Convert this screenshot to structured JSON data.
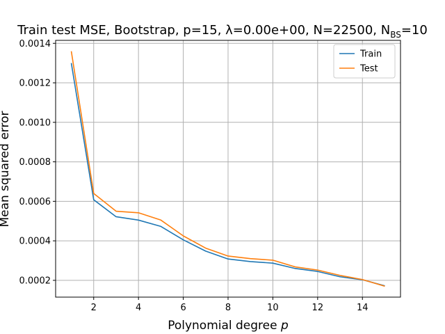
{
  "chart_data": {
    "type": "line",
    "title": "Train test MSE, Bootstrap, p=15, λ=0.00e+00, N=22500, N",
    "title_subscript": "BS",
    "title_suffix": "=10",
    "xlabel": "Polynomial degree ",
    "xlabel_var": "p",
    "ylabel": "Mean squared error",
    "x": [
      1,
      2,
      3,
      4,
      5,
      6,
      7,
      8,
      9,
      10,
      11,
      12,
      13,
      14,
      15
    ],
    "series": [
      {
        "name": "Train",
        "color": "#1f77b4",
        "values": [
          0.0013,
          0.000608,
          0.000522,
          0.000505,
          0.000473,
          0.000405,
          0.000348,
          0.000308,
          0.000295,
          0.000287,
          0.00026,
          0.000245,
          0.000218,
          0.000203,
          0.000172
        ]
      },
      {
        "name": "Test",
        "color": "#ff7f0e",
        "values": [
          0.00136,
          0.00064,
          0.00055,
          0.000542,
          0.000505,
          0.000425,
          0.000363,
          0.000323,
          0.00031,
          0.000302,
          0.000268,
          0.000252,
          0.000225,
          0.000204,
          0.00017
        ]
      }
    ],
    "xlim": [
      0.3,
      15.7
    ],
    "ylim": [
      0.000115,
      0.001415
    ],
    "xticks": [
      2,
      4,
      6,
      8,
      10,
      12,
      14
    ],
    "yticks": [
      0.0002,
      0.0004,
      0.0006,
      0.0008,
      0.001,
      0.0012,
      0.0014
    ],
    "ytick_labels": [
      "0.0002",
      "0.0004",
      "0.0006",
      "0.0008",
      "0.0010",
      "0.0012",
      "0.0014"
    ],
    "grid": true,
    "legend_position": "top-right"
  }
}
